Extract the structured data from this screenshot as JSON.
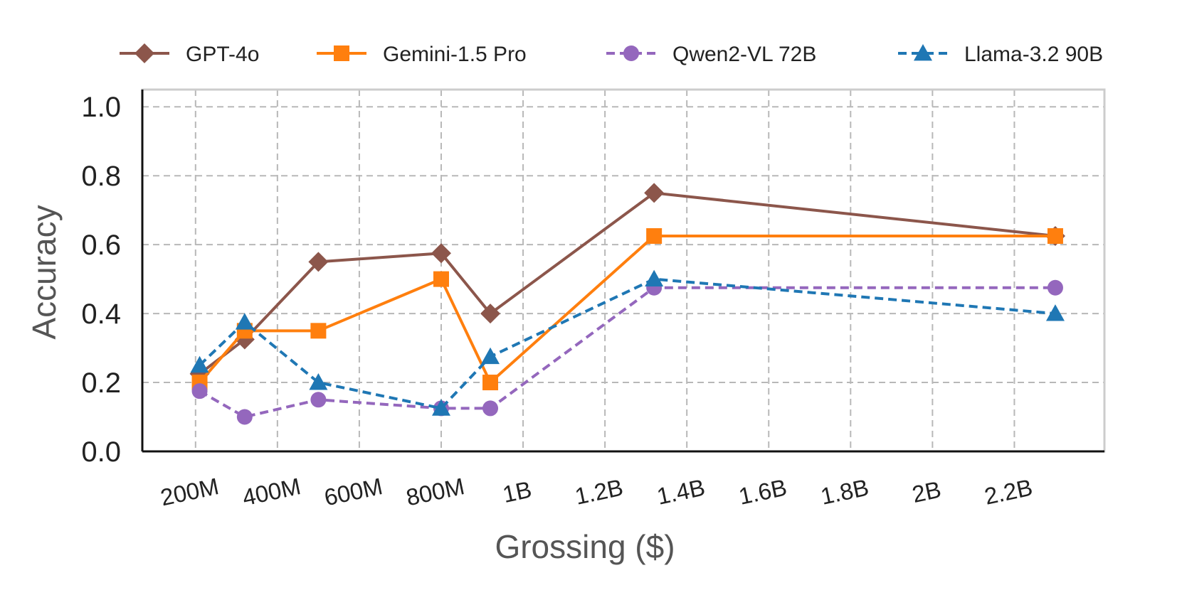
{
  "chart_data": {
    "type": "line",
    "title": "",
    "xlabel": "Grossing ($)",
    "ylabel": "Accuracy",
    "xlim": [
      70,
      2420
    ],
    "ylim": [
      0.0,
      1.05
    ],
    "grid": true,
    "legend_position": "top",
    "x_ticks": [
      {
        "value": 200,
        "label": "200M"
      },
      {
        "value": 400,
        "label": "400M"
      },
      {
        "value": 600,
        "label": "600M"
      },
      {
        "value": 800,
        "label": "800M"
      },
      {
        "value": 1000,
        "label": "1B"
      },
      {
        "value": 1200,
        "label": "1.2B"
      },
      {
        "value": 1400,
        "label": "1.4B"
      },
      {
        "value": 1600,
        "label": "1.6B"
      },
      {
        "value": 1800,
        "label": "1.8B"
      },
      {
        "value": 2000,
        "label": "2B"
      },
      {
        "value": 2200,
        "label": "2.2B"
      }
    ],
    "y_ticks": [
      {
        "value": 0.0,
        "label": "0.0"
      },
      {
        "value": 0.2,
        "label": "0.2"
      },
      {
        "value": 0.4,
        "label": "0.4"
      },
      {
        "value": 0.6,
        "label": "0.6"
      },
      {
        "value": 0.8,
        "label": "0.8"
      },
      {
        "value": 1.0,
        "label": "1.0"
      }
    ],
    "x_unit": "millions USD",
    "x": [
      210,
      320,
      500,
      800,
      920,
      1320,
      2300
    ],
    "series": [
      {
        "name": "GPT-4o",
        "color": "#8c564b",
        "marker": "diamond",
        "dashed": false,
        "values": [
          0.225,
          0.325,
          0.55,
          0.575,
          0.4,
          0.75,
          0.625
        ]
      },
      {
        "name": "Gemini-1.5 Pro",
        "color": "#ff7f0e",
        "marker": "square",
        "dashed": false,
        "values": [
          0.2,
          0.35,
          0.35,
          0.5,
          0.2,
          0.625,
          0.625
        ]
      },
      {
        "name": "Qwen2-VL 72B",
        "color": "#9467bd",
        "marker": "circle",
        "dashed": true,
        "values": [
          0.175,
          0.1,
          0.15,
          0.125,
          0.125,
          0.475,
          0.475
        ]
      },
      {
        "name": "Llama-3.2 90B",
        "color": "#1f77b4",
        "marker": "triangle",
        "dashed": true,
        "values": [
          0.25,
          0.375,
          0.2,
          0.125,
          0.275,
          0.5,
          0.4
        ]
      }
    ]
  }
}
